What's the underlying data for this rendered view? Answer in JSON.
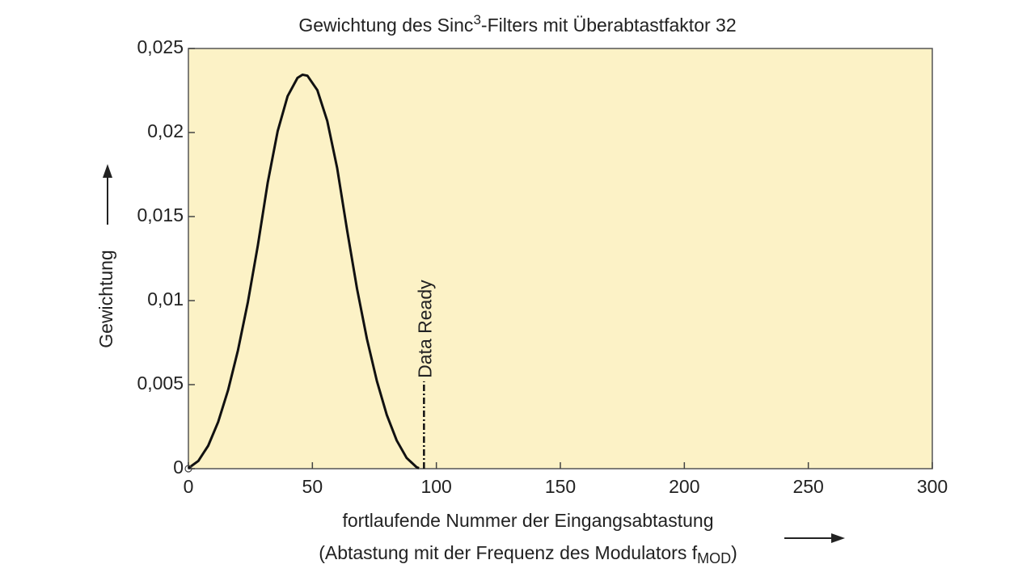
{
  "chart_data": {
    "type": "line",
    "title": [
      "Gewichtung des Sinc",
      "3",
      "-Filters mit Überabtastfaktor 32"
    ],
    "y_label": "Gewichtung",
    "x_label": [
      "fortlaufende Nummer der Eingangsabtastung",
      "(Abtastung mit der Frequenz des Modulators f",
      "MOD",
      ")"
    ],
    "x": [
      0,
      4,
      8,
      12,
      16,
      20,
      24,
      28,
      32,
      36,
      40,
      44,
      46,
      48,
      52,
      56,
      60,
      64,
      68,
      72,
      76,
      80,
      84,
      88,
      92,
      93
    ],
    "series": [
      {
        "color": "#111111",
        "values": [
          3e-05,
          0.00046,
          0.00137,
          0.00278,
          0.00467,
          0.00705,
          0.00992,
          0.01328,
          0.01703,
          0.02008,
          0.02216,
          0.02325,
          0.02344,
          0.02338,
          0.02252,
          0.02069,
          0.01788,
          0.01419,
          0.01071,
          0.00772,
          0.00522,
          0.0032,
          0.00168,
          0.00064,
          9e-05,
          3e-05
        ]
      }
    ],
    "annotation": {
      "text": "Data Ready",
      "x": 95,
      "y": [
        0,
        0.0052
      ]
    },
    "xlim": [
      0,
      300
    ],
    "xticks": [
      0,
      50,
      100,
      150,
      200,
      250,
      300
    ],
    "ylim": [
      0,
      0.025
    ],
    "yticks": [
      0,
      {
        "value": 0.005,
        "label": "0,005"
      },
      {
        "value": 0.01,
        "label": "0,01"
      },
      {
        "value": 0.015,
        "label": "0,015"
      },
      {
        "value": 0.02,
        "label": "0,02"
      },
      {
        "value": 0.025,
        "label": "0,025"
      }
    ],
    "plot_background": "#fcf2c6"
  }
}
